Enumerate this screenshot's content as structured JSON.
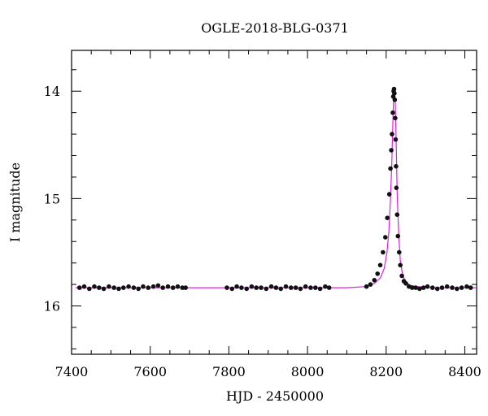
{
  "chart_data": {
    "type": "scatter",
    "title": "OGLE-2018-BLG-0371",
    "xlabel": "HJD - 2450000",
    "ylabel": "I magnitude",
    "xlim": [
      7400,
      8430
    ],
    "ylim": [
      16.45,
      13.62
    ],
    "y_inverted": true,
    "x_ticks": [
      7400,
      7600,
      7800,
      8000,
      8200,
      8400
    ],
    "y_ticks": [
      14,
      15,
      16
    ],
    "grid": false,
    "colors": {
      "points": "#111111",
      "model": "#e020e0"
    },
    "series": [
      {
        "type": "scatter",
        "x": [
          7420,
          7432,
          7445,
          7458,
          7470,
          7482,
          7495,
          7508,
          7520,
          7532,
          7545,
          7558,
          7570,
          7582,
          7595,
          7608,
          7620,
          7632,
          7645,
          7658,
          7670,
          7682,
          7690,
          7795,
          7808,
          7820,
          7832,
          7845,
          7858,
          7870,
          7882,
          7895,
          7908,
          7920,
          7932,
          7945,
          7958,
          7970,
          7982,
          7995,
          8008,
          8020,
          8032,
          8045,
          8055,
          8150,
          8160,
          8170,
          8178,
          8185,
          8192,
          8198,
          8203,
          8208,
          8211,
          8213,
          8215,
          8217,
          8218,
          8219,
          8220,
          8221,
          8222,
          8223,
          8224,
          8225,
          8226,
          8228,
          8230,
          8233,
          8236,
          8240,
          8245,
          8250,
          8258,
          8266,
          8275,
          8285,
          8295,
          8305,
          8318,
          8330,
          8342,
          8355,
          8368,
          8380,
          8392,
          8405,
          8415
        ],
        "y": [
          15.83,
          15.82,
          15.84,
          15.82,
          15.83,
          15.84,
          15.82,
          15.83,
          15.84,
          15.83,
          15.82,
          15.83,
          15.84,
          15.82,
          15.83,
          15.82,
          15.81,
          15.83,
          15.82,
          15.83,
          15.82,
          15.83,
          15.83,
          15.83,
          15.84,
          15.82,
          15.83,
          15.84,
          15.82,
          15.83,
          15.83,
          15.84,
          15.82,
          15.83,
          15.84,
          15.82,
          15.83,
          15.83,
          15.84,
          15.82,
          15.83,
          15.83,
          15.84,
          15.82,
          15.83,
          15.82,
          15.8,
          15.76,
          15.7,
          15.62,
          15.5,
          15.36,
          15.18,
          14.96,
          14.72,
          14.55,
          14.4,
          14.2,
          14.05,
          14.0,
          13.98,
          14.02,
          14.08,
          14.25,
          14.45,
          14.7,
          14.9,
          15.15,
          15.35,
          15.5,
          15.62,
          15.72,
          15.77,
          15.79,
          15.82,
          15.83,
          15.83,
          15.84,
          15.83,
          15.82,
          15.83,
          15.84,
          15.83,
          15.82,
          15.83,
          15.84,
          15.83,
          15.82,
          15.83
        ]
      },
      {
        "type": "line",
        "x": [
          7410,
          7700,
          8000,
          8100,
          8150,
          8170,
          8185,
          8195,
          8202,
          8207,
          8211,
          8214,
          8217,
          8219,
          8221,
          8223,
          8225,
          8228,
          8232,
          8236,
          8242,
          8250,
          8262,
          8280,
          8320,
          8430
        ],
        "y": [
          15.83,
          15.83,
          15.83,
          15.83,
          15.82,
          15.79,
          15.74,
          15.65,
          15.5,
          15.3,
          15.0,
          14.7,
          14.3,
          14.05,
          13.97,
          14.1,
          14.4,
          14.95,
          15.35,
          15.58,
          15.72,
          15.78,
          15.81,
          15.82,
          15.83,
          15.83
        ]
      }
    ]
  }
}
